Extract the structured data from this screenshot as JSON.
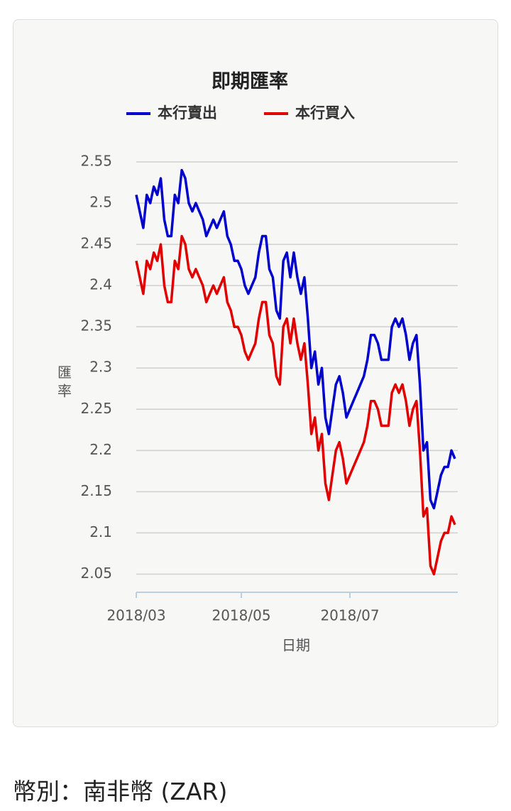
{
  "chart_data": {
    "type": "line",
    "title": "即期匯率",
    "x_label": "日期",
    "y_label": "匯率",
    "categories": [
      "2018/03",
      null,
      null,
      null,
      null,
      null,
      null,
      null,
      null,
      null,
      null,
      null,
      null,
      null,
      null,
      null,
      null,
      null,
      null,
      null,
      null,
      null,
      null,
      null,
      null,
      null,
      null,
      null,
      null,
      null,
      "2018/05",
      null,
      null,
      null,
      null,
      null,
      null,
      null,
      null,
      null,
      null,
      null,
      null,
      null,
      null,
      null,
      null,
      null,
      null,
      null,
      null,
      null,
      null,
      null,
      null,
      null,
      null,
      null,
      null,
      null,
      null,
      "2018/07",
      null,
      null,
      null,
      null,
      null,
      null,
      null,
      null,
      null,
      null,
      null,
      null,
      null,
      null,
      null,
      null,
      null,
      null,
      null,
      null,
      null,
      null,
      null,
      null,
      null,
      null,
      null,
      null,
      null,
      null
    ],
    "series": [
      {
        "name": "本行賣出",
        "color": "#0000cc",
        "values": [
          2.51,
          2.49,
          2.47,
          2.51,
          2.5,
          2.52,
          2.51,
          2.53,
          2.48,
          2.46,
          2.46,
          2.51,
          2.5,
          2.54,
          2.53,
          2.5,
          2.49,
          2.5,
          2.49,
          2.48,
          2.46,
          2.47,
          2.48,
          2.47,
          2.48,
          2.49,
          2.46,
          2.45,
          2.43,
          2.43,
          2.42,
          2.4,
          2.39,
          2.4,
          2.41,
          2.44,
          2.46,
          2.46,
          2.42,
          2.41,
          2.37,
          2.36,
          2.43,
          2.44,
          2.41,
          2.44,
          2.41,
          2.39,
          2.41,
          2.36,
          2.3,
          2.32,
          2.28,
          2.3,
          2.24,
          2.22,
          2.25,
          2.28,
          2.29,
          2.27,
          2.24,
          2.25,
          2.26,
          2.27,
          2.28,
          2.29,
          2.31,
          2.34,
          2.34,
          2.33,
          2.31,
          2.31,
          2.31,
          2.35,
          2.36,
          2.35,
          2.36,
          2.34,
          2.31,
          2.33,
          2.34,
          2.28,
          2.2,
          2.21,
          2.14,
          2.13,
          2.15,
          2.17,
          2.18,
          2.18,
          2.2,
          2.19
        ]
      },
      {
        "name": "本行買入",
        "color": "#e00000",
        "values": [
          2.43,
          2.41,
          2.39,
          2.43,
          2.42,
          2.44,
          2.43,
          2.45,
          2.4,
          2.38,
          2.38,
          2.43,
          2.42,
          2.46,
          2.45,
          2.42,
          2.41,
          2.42,
          2.41,
          2.4,
          2.38,
          2.39,
          2.4,
          2.39,
          2.4,
          2.41,
          2.38,
          2.37,
          2.35,
          2.35,
          2.34,
          2.32,
          2.31,
          2.32,
          2.33,
          2.36,
          2.38,
          2.38,
          2.34,
          2.33,
          2.29,
          2.28,
          2.35,
          2.36,
          2.33,
          2.36,
          2.33,
          2.31,
          2.33,
          2.28,
          2.22,
          2.24,
          2.2,
          2.22,
          2.16,
          2.14,
          2.17,
          2.2,
          2.21,
          2.19,
          2.16,
          2.17,
          2.18,
          2.19,
          2.2,
          2.21,
          2.23,
          2.26,
          2.26,
          2.25,
          2.23,
          2.23,
          2.23,
          2.27,
          2.28,
          2.27,
          2.28,
          2.26,
          2.23,
          2.25,
          2.26,
          2.2,
          2.12,
          2.13,
          2.06,
          2.05,
          2.07,
          2.09,
          2.1,
          2.1,
          2.12,
          2.11
        ]
      }
    ],
    "ylim": [
      2.028,
      2.55
    ],
    "yticks": [
      2.05,
      2.1,
      2.15,
      2.2,
      2.25,
      2.3,
      2.35,
      2.4,
      2.45,
      2.5,
      2.55
    ],
    "grid": true,
    "legend": "top"
  },
  "footer": {
    "currency": "幣別：南非幣 (ZAR)"
  }
}
